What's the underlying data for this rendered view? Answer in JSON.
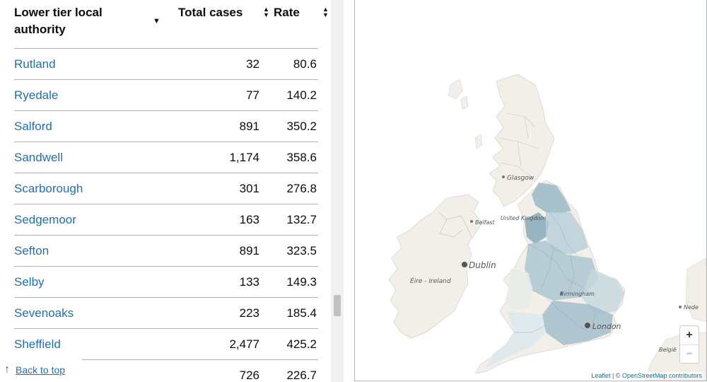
{
  "table": {
    "headers": {
      "name": "Lower tier local authority",
      "cases": "Total cases",
      "rate": "Rate"
    },
    "rows": [
      {
        "name": "Rutland",
        "cases": "32",
        "rate": "80.6"
      },
      {
        "name": "Ryedale",
        "cases": "77",
        "rate": "140.2"
      },
      {
        "name": "Salford",
        "cases": "891",
        "rate": "350.2"
      },
      {
        "name": "Sandwell",
        "cases": "1,174",
        "rate": "358.6"
      },
      {
        "name": "Scarborough",
        "cases": "301",
        "rate": "276.8"
      },
      {
        "name": "Sedgemoor",
        "cases": "163",
        "rate": "132.7"
      },
      {
        "name": "Sefton",
        "cases": "891",
        "rate": "323.5"
      },
      {
        "name": "Selby",
        "cases": "133",
        "rate": "149.3"
      },
      {
        "name": "Sevenoaks",
        "cases": "223",
        "rate": "185.4"
      },
      {
        "name": "Sheffield",
        "cases": "2,477",
        "rate": "425.2"
      },
      {
        "name": "",
        "cases": "726",
        "rate": "226.7"
      }
    ]
  },
  "back_to_top": {
    "label": "Back to top"
  },
  "map": {
    "places": {
      "glasgow": "Glasgow",
      "belfast": "Belfast",
      "united_kingdom": "United Kingdom",
      "dublin": "Dublin",
      "eire": "Éire - Ireland",
      "birmingham": "Birmingham",
      "london": "London",
      "nederland": "Nede",
      "belgie": "België"
    },
    "zoom_in": "+",
    "zoom_out": "−",
    "attribution_leaflet": "Leaflet",
    "attribution_sep": " | © ",
    "attribution_osm": "OpenStreetMap contributors",
    "colors": {
      "land": "#f2efe9",
      "sea": "#ffffff",
      "choropleth_light": "#dce6ea",
      "choropleth_mid": "#a9c4cf",
      "choropleth_dark": "#6f9aac"
    }
  }
}
